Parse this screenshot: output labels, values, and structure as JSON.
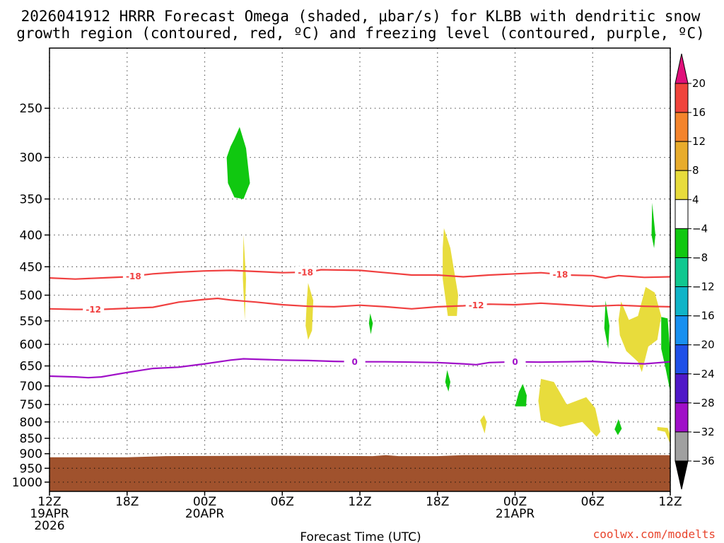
{
  "chart_data": {
    "type": "time-height cross section",
    "title_line1": "2026041912 HRRR Forecast Omega (shaded, μbar/s) for KLBB with dendritic snow",
    "title_line2": "growth region (contoured, red, ºC) and freezing level (contoured, purple, ºC)",
    "xlabel": "Forecast Time (UTC)",
    "ylabel": "",
    "credit": "coolwx.com/modelts",
    "credit_color": "#e8442c",
    "x_range_hours": [
      0,
      48
    ],
    "y_range_hpa": [
      1035,
      200
    ],
    "y_scale": "log pressure",
    "grid": true,
    "y_ticks": [
      {
        "p": 250,
        "label": "250"
      },
      {
        "p": 300,
        "label": "300"
      },
      {
        "p": 350,
        "label": "350"
      },
      {
        "p": 400,
        "label": "400"
      },
      {
        "p": 450,
        "label": "450"
      },
      {
        "p": 500,
        "label": "500"
      },
      {
        "p": 550,
        "label": "550"
      },
      {
        "p": 600,
        "label": "600"
      },
      {
        "p": 650,
        "label": "650"
      },
      {
        "p": 700,
        "label": "700"
      },
      {
        "p": 750,
        "label": "750"
      },
      {
        "p": 800,
        "label": "800"
      },
      {
        "p": 850,
        "label": "850"
      },
      {
        "p": 900,
        "label": "900"
      },
      {
        "p": 950,
        "label": "950"
      },
      {
        "p": 1000,
        "label": "1000"
      }
    ],
    "x_ticks": [
      {
        "h": 0,
        "lines": [
          "12Z",
          "19APR",
          "2026"
        ]
      },
      {
        "h": 6,
        "lines": [
          "18Z"
        ]
      },
      {
        "h": 12,
        "lines": [
          "00Z",
          "20APR"
        ]
      },
      {
        "h": 18,
        "lines": [
          "06Z"
        ]
      },
      {
        "h": 24,
        "lines": [
          "12Z"
        ]
      },
      {
        "h": 30,
        "lines": [
          "18Z"
        ]
      },
      {
        "h": 36,
        "lines": [
          "00Z",
          "21APR"
        ]
      },
      {
        "h": 42,
        "lines": [
          "06Z"
        ]
      },
      {
        "h": 48,
        "lines": [
          "12Z"
        ]
      }
    ],
    "colorbar": {
      "levels": [
        "20",
        "16",
        "12",
        "8",
        "4",
        "−4",
        "−8",
        "−12",
        "−16",
        "−20",
        "−24",
        "−28",
        "−32",
        "−36"
      ],
      "colors": [
        "#e0107a",
        "#f0443c",
        "#f4842c",
        "#e8ac2c",
        "#e8dc3c",
        "#ffffff",
        "#10c810",
        "#10c890",
        "#10b4c8",
        "#1890f0",
        "#2050e8",
        "#5018c8",
        "#a010c8",
        "#a0a0a0",
        "#000000"
      ]
    },
    "terrain": {
      "color": "#a0522d",
      "surface_hpa": [
        [
          0,
          912
        ],
        [
          6,
          912
        ],
        [
          9,
          908
        ],
        [
          18,
          907
        ],
        [
          25,
          908
        ],
        [
          26,
          905
        ],
        [
          27,
          908
        ],
        [
          30,
          908
        ],
        [
          32,
          905
        ],
        [
          48,
          905
        ]
      ]
    },
    "series": [
      {
        "name": "-18",
        "color": "#f04040",
        "points": [
          [
            0,
            469
          ],
          [
            2,
            471
          ],
          [
            4,
            469
          ],
          [
            6,
            467
          ],
          [
            8,
            462
          ],
          [
            10,
            459
          ],
          [
            12,
            457
          ],
          [
            14,
            456
          ],
          [
            16,
            458
          ],
          [
            18,
            460
          ],
          [
            20,
            459
          ],
          [
            21,
            455
          ],
          [
            24,
            456
          ],
          [
            26,
            460
          ],
          [
            28,
            464
          ],
          [
            30,
            464
          ],
          [
            32,
            467
          ],
          [
            34,
            464
          ],
          [
            36,
            462
          ],
          [
            38,
            460
          ],
          [
            40,
            464
          ],
          [
            42,
            465
          ],
          [
            43,
            469
          ],
          [
            44,
            465
          ],
          [
            46,
            468
          ],
          [
            48,
            467
          ]
        ],
        "labels_at_h": [
          6.5,
          19.8,
          39.5
        ]
      },
      {
        "name": "-12",
        "color": "#f04040",
        "points": [
          [
            0,
            526
          ],
          [
            2,
            527
          ],
          [
            4,
            527
          ],
          [
            6,
            525
          ],
          [
            8,
            523
          ],
          [
            10,
            513
          ],
          [
            12,
            508
          ],
          [
            13,
            506
          ],
          [
            14,
            509
          ],
          [
            16,
            513
          ],
          [
            18,
            518
          ],
          [
            20,
            521
          ],
          [
            22,
            522
          ],
          [
            24,
            519
          ],
          [
            26,
            522
          ],
          [
            28,
            526
          ],
          [
            30,
            522
          ],
          [
            32,
            520
          ],
          [
            34,
            517
          ],
          [
            36,
            518
          ],
          [
            38,
            515
          ],
          [
            40,
            518
          ],
          [
            42,
            521
          ],
          [
            44,
            519
          ],
          [
            46,
            521
          ],
          [
            48,
            522
          ]
        ],
        "labels_at_h": [
          3.4,
          33.0
        ]
      },
      {
        "name": "0",
        "color": "#a010c8",
        "points": [
          [
            0,
            675
          ],
          [
            2,
            677
          ],
          [
            3,
            679
          ],
          [
            4,
            677
          ],
          [
            6,
            666
          ],
          [
            8,
            656
          ],
          [
            10,
            653
          ],
          [
            12,
            645
          ],
          [
            14,
            636
          ],
          [
            15,
            633
          ],
          [
            16,
            634
          ],
          [
            18,
            636
          ],
          [
            20,
            637
          ],
          [
            22,
            639
          ],
          [
            24,
            640
          ],
          [
            26,
            640
          ],
          [
            28,
            641
          ],
          [
            30,
            642
          ],
          [
            32,
            645
          ],
          [
            33,
            647
          ],
          [
            34,
            642
          ],
          [
            36,
            640
          ],
          [
            38,
            641
          ],
          [
            40,
            640
          ],
          [
            42,
            639
          ],
          [
            44,
            643
          ],
          [
            46,
            645
          ],
          [
            48,
            640
          ]
        ],
        "labels_at_h": [
          23.6,
          36.0
        ]
      }
    ],
    "shaded_regions": [
      {
        "category": "-4 to -8",
        "color": "#10c810",
        "points": [
          [
            14.3,
            280
          ],
          [
            14.7,
            268
          ],
          [
            15.2,
            290
          ],
          [
            15.5,
            330
          ],
          [
            15.0,
            350
          ],
          [
            14.3,
            348
          ],
          [
            13.8,
            330
          ],
          [
            13.7,
            300
          ],
          [
            14.0,
            288
          ]
        ]
      },
      {
        "category": "4 to 8",
        "color": "#e8dc3c",
        "points": [
          [
            15.0,
            400
          ],
          [
            15.2,
            470
          ],
          [
            15.1,
            548
          ],
          [
            14.95,
            470
          ]
        ]
      },
      {
        "category": "4 to 8",
        "color": "#e8dc3c",
        "points": [
          [
            20.0,
            478
          ],
          [
            20.4,
            510
          ],
          [
            20.3,
            570
          ],
          [
            20.0,
            590
          ],
          [
            19.8,
            560
          ],
          [
            19.9,
            510
          ]
        ]
      },
      {
        "category": "-4 to -8",
        "color": "#10c810",
        "points": [
          [
            24.8,
            535
          ],
          [
            25.0,
            555
          ],
          [
            24.85,
            578
          ],
          [
            24.7,
            555
          ]
        ]
      },
      {
        "category": "4 to 8",
        "color": "#e8dc3c",
        "points": [
          [
            30.5,
            390
          ],
          [
            31.0,
            420
          ],
          [
            31.6,
            500
          ],
          [
            31.5,
            540
          ],
          [
            30.8,
            540
          ],
          [
            30.4,
            470
          ],
          [
            30.4,
            420
          ]
        ]
      },
      {
        "category": "-4 to -8",
        "color": "#10c810",
        "points": [
          [
            30.75,
            660
          ],
          [
            31.0,
            690
          ],
          [
            30.85,
            715
          ],
          [
            30.6,
            690
          ]
        ]
      },
      {
        "category": "4 to 8",
        "color": "#e8dc3c",
        "points": [
          [
            33.6,
            780
          ],
          [
            33.8,
            800
          ],
          [
            33.65,
            835
          ],
          [
            33.3,
            795
          ]
        ]
      },
      {
        "category": "-4 to -8",
        "color": "#10c810",
        "points": [
          [
            36.6,
            695
          ],
          [
            36.9,
            725
          ],
          [
            36.85,
            755
          ],
          [
            36.0,
            755
          ],
          [
            36.3,
            715
          ]
        ]
      },
      {
        "category": "4 to 8",
        "color": "#e8dc3c",
        "points": [
          [
            38.0,
            682
          ],
          [
            39.0,
            690
          ],
          [
            40.0,
            750
          ],
          [
            41.5,
            730
          ],
          [
            42.2,
            760
          ],
          [
            42.6,
            830
          ],
          [
            42.3,
            845
          ],
          [
            41.2,
            800
          ],
          [
            39.5,
            815
          ],
          [
            38.0,
            795
          ],
          [
            37.8,
            740
          ]
        ]
      },
      {
        "category": "-4 to -8",
        "color": "#10c810",
        "points": [
          [
            43.0,
            510
          ],
          [
            43.3,
            560
          ],
          [
            43.2,
            610
          ],
          [
            42.9,
            565
          ]
        ]
      },
      {
        "category": "4 to 8",
        "color": "#e8dc3c",
        "points": [
          [
            44.2,
            512
          ],
          [
            44.8,
            548
          ],
          [
            45.5,
            540
          ],
          [
            46.1,
            485
          ],
          [
            46.8,
            495
          ],
          [
            47.3,
            540
          ],
          [
            47.0,
            590
          ],
          [
            46.3,
            605
          ],
          [
            45.8,
            665
          ],
          [
            45.5,
            640
          ],
          [
            44.6,
            615
          ],
          [
            44.1,
            580
          ],
          [
            44.0,
            548
          ]
        ]
      },
      {
        "category": "-4 to -8",
        "color": "#10c810",
        "points": [
          [
            46.6,
            355
          ],
          [
            46.85,
            400
          ],
          [
            46.75,
            420
          ],
          [
            46.55,
            400
          ]
        ]
      },
      {
        "category": "-4 to -8",
        "color": "#10c810",
        "points": [
          [
            44.0,
            792
          ],
          [
            44.25,
            820
          ],
          [
            43.95,
            840
          ],
          [
            43.7,
            822
          ]
        ]
      },
      {
        "category": "-4 to -8",
        "color": "#10c810",
        "points": [
          [
            47.3,
            542
          ],
          [
            47.8,
            545
          ],
          [
            48.0,
            620
          ],
          [
            48.0,
            715
          ],
          [
            47.6,
            650
          ],
          [
            47.3,
            610
          ]
        ]
      },
      {
        "category": "4 to 8",
        "color": "#e8dc3c",
        "points": [
          [
            47.0,
            815
          ],
          [
            47.8,
            818
          ],
          [
            48.0,
            840
          ],
          [
            48.0,
            868
          ],
          [
            47.6,
            830
          ],
          [
            47.0,
            825
          ]
        ]
      }
    ]
  }
}
